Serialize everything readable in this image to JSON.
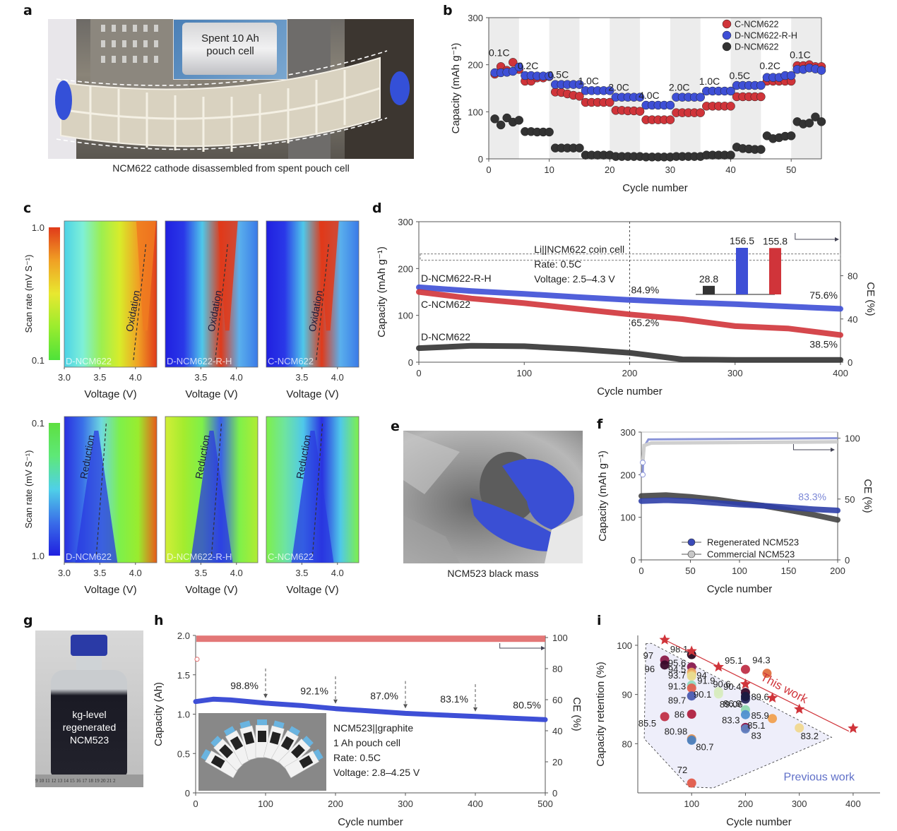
{
  "panels": {
    "a": {
      "label": "a",
      "inset_text_line1": "Spent 10 Ah",
      "inset_text_line2": "pouch cell",
      "caption": "NCM622 cathode disassembled from spent pouch cell"
    },
    "c": {
      "label": "c"
    },
    "e": {
      "label": "e",
      "caption": "NCM523 black mass"
    },
    "g": {
      "label": "g",
      "text_line1": "kg-level",
      "text_line2": "regenerated",
      "text_line3": "NCM523",
      "ruler_text": "9 10 11 12 13 14 15 16 17 18 19 20 21 2"
    }
  },
  "chart_data": [
    {
      "id": "b",
      "label": "b",
      "type": "scatter",
      "title": "",
      "xlabel": "Cycle number",
      "ylabel": "Capacity (mAh g⁻¹)",
      "xlim": [
        0,
        55
      ],
      "ylim": [
        0,
        300
      ],
      "xticks": [
        0,
        10,
        20,
        30,
        40,
        50
      ],
      "yticks": [
        0,
        100,
        200,
        300
      ],
      "legend_position": "top-right",
      "rate_bands": [
        {
          "label": "0.1C",
          "from": 0,
          "to": 5
        },
        {
          "label": "0.2C",
          "from": 5,
          "to": 10
        },
        {
          "label": "0.5C",
          "from": 10,
          "to": 15
        },
        {
          "label": "1.0C",
          "from": 15,
          "to": 20
        },
        {
          "label": "2.0C",
          "from": 20,
          "to": 25
        },
        {
          "label": "4.0C",
          "from": 25,
          "to": 30
        },
        {
          "label": "2.0C",
          "from": 30,
          "to": 35
        },
        {
          "label": "1.0C",
          "from": 35,
          "to": 40
        },
        {
          "label": "0.5C",
          "from": 40,
          "to": 45
        },
        {
          "label": "0.2C",
          "from": 45,
          "to": 50
        },
        {
          "label": "0.1C",
          "from": 50,
          "to": 55
        }
      ],
      "series": [
        {
          "name": "C-NCM622",
          "color": "#d0343a",
          "values": [
            180,
            196,
            188,
            205,
            190,
            165,
            165,
            172,
            172,
            175,
            142,
            141,
            138,
            135,
            133,
            120,
            120,
            120,
            120,
            120,
            103,
            103,
            102,
            102,
            101,
            83,
            83,
            83,
            83,
            83,
            98,
            98,
            98,
            98,
            98,
            112,
            112,
            112,
            112,
            112,
            132,
            132,
            132,
            132,
            132,
            165,
            165,
            165,
            165,
            165,
            198,
            198,
            200,
            196,
            196
          ]
        },
        {
          "name": "D-NCM622-R-H",
          "color": "#3e4fd6",
          "values": [
            183,
            183,
            184,
            186,
            195,
            177,
            177,
            176,
            176,
            176,
            158,
            158,
            158,
            158,
            158,
            145,
            145,
            145,
            145,
            145,
            131,
            131,
            131,
            131,
            131,
            114,
            114,
            114,
            114,
            114,
            131,
            131,
            131,
            131,
            131,
            144,
            144,
            144,
            144,
            144,
            156,
            156,
            156,
            156,
            156,
            173,
            173,
            173,
            177,
            177,
            190,
            190,
            193,
            191,
            188
          ]
        },
        {
          "name": "D-NCM622",
          "color": "#333333",
          "values": [
            85,
            72,
            87,
            78,
            82,
            58,
            58,
            57,
            57,
            57,
            23,
            23,
            23,
            23,
            23,
            8,
            8,
            8,
            8,
            8,
            5,
            5,
            5,
            5,
            5,
            4,
            4,
            4,
            4,
            4,
            5,
            5,
            5,
            5,
            5,
            8,
            8,
            8,
            8,
            8,
            25,
            22,
            21,
            20,
            20,
            49,
            43,
            45,
            48,
            49,
            79,
            74,
            76,
            89,
            79
          ]
        }
      ]
    },
    {
      "id": "c",
      "label": "c",
      "type": "heatmap",
      "xlabel": "Voltage (V)",
      "ylabel": "Scan rate (mV S⁻¹)",
      "subplots": [
        {
          "name": "D-NCM622",
          "row": "oxidation",
          "annotation": "Oxidation",
          "xticks": [
            "3.0",
            "3.5",
            "4.0"
          ],
          "yticks": [
            "1.0",
            "0.1"
          ]
        },
        {
          "name": "D-NCM622-R-H",
          "row": "oxidation",
          "annotation": "Oxidation",
          "xticks": [
            "3.5",
            "4.0"
          ]
        },
        {
          "name": "C-NCM622",
          "row": "oxidation",
          "annotation": "Oxidation",
          "xticks": [
            "3.5",
            "4.0"
          ]
        },
        {
          "name": "D-NCM622",
          "row": "reduction",
          "annotation": "Reduction",
          "xticks": [
            "3.0",
            "3.5",
            "4.0"
          ],
          "yticks": [
            "0.1",
            "1.0"
          ]
        },
        {
          "name": "D-NCM622-R-H",
          "row": "reduction",
          "annotation": "Reduction",
          "xticks": [
            "3.5",
            "4.0"
          ]
        },
        {
          "name": "C-NCM622",
          "row": "reduction",
          "annotation": "Reduction",
          "xticks": [
            "3.5",
            "4.0"
          ]
        }
      ],
      "xlim": [
        3.0,
        4.3
      ],
      "colorbar": [
        "#2020e0",
        "#3a7de8",
        "#4fd3e8",
        "#7ef04a",
        "#d6ef2a",
        "#f08a20",
        "#e02a1a"
      ]
    },
    {
      "id": "d",
      "label": "d",
      "type": "line",
      "xlabel": "Cycle number",
      "ylabel": "Capacity (mAh g⁻¹)",
      "y2label": "CE (%)",
      "xlim": [
        0,
        400
      ],
      "ylim": [
        0,
        300
      ],
      "y2lim": [
        0,
        130
      ],
      "xticks": [
        0,
        100,
        200,
        300,
        400
      ],
      "yticks": [
        0,
        100,
        200,
        300
      ],
      "y2ticks": [
        0,
        40,
        80
      ],
      "vline_at": 200,
      "info_lines": [
        "Li||NCM622 coin cell",
        "Rate: 0.5C",
        "Voltage: 2.5–4.3 V"
      ],
      "series": [
        {
          "name": "D-NCM622-R-H",
          "color": "#3e4fd6",
          "x": [
            0,
            50,
            100,
            150,
            200,
            250,
            300,
            350,
            400
          ],
          "values": [
            160,
            152,
            146,
            139,
            133,
            128,
            124,
            119,
            114
          ]
        },
        {
          "name": "C-NCM622",
          "color": "#d0343a",
          "x": [
            0,
            50,
            100,
            150,
            200,
            250,
            300,
            350,
            400
          ],
          "values": [
            150,
            136,
            126,
            114,
            102,
            92,
            77,
            72,
            58
          ]
        },
        {
          "name": "D-NCM622",
          "color": "#333333",
          "x": [
            0,
            50,
            100,
            150,
            200,
            250,
            300,
            350,
            400
          ],
          "values": [
            30,
            35,
            34,
            28,
            20,
            6,
            5,
            5,
            5
          ]
        }
      ],
      "ce_value": 97,
      "annotations": [
        {
          "text": "84.9%",
          "x": 200,
          "y": 135
        },
        {
          "text": "65.2%",
          "x": 200,
          "y": 80
        },
        {
          "text": "75.6%",
          "x": 390,
          "y": 130
        },
        {
          "text": "38.5%",
          "x": 390,
          "y": 40
        }
      ],
      "inset_bar": {
        "categories": [
          "D-NCM622",
          "D-NCM622-R-H",
          "C-NCM622"
        ],
        "values": [
          28.8,
          156.5,
          155.8
        ],
        "labels": [
          "28.8",
          "156.5",
          "155.8"
        ],
        "colors": [
          "#333333",
          "#3e4fd6",
          "#d0343a"
        ]
      }
    },
    {
      "id": "f",
      "label": "f",
      "type": "line",
      "xlabel": "Cycle number",
      "ylabel": "Capacity (mAh g⁻¹)",
      "y2label": "CE (%)",
      "xlim": [
        0,
        200
      ],
      "ylim": [
        0,
        300
      ],
      "y2lim": [
        0,
        105
      ],
      "xticks": [
        0,
        50,
        100,
        150,
        200
      ],
      "yticks": [
        0,
        100,
        200,
        300
      ],
      "y2ticks": [
        0,
        50,
        100
      ],
      "legend_position": "bottom-center",
      "series": [
        {
          "name": "Regenerated NCM523",
          "color": "#2f3fa8",
          "x": [
            0,
            25,
            50,
            75,
            100,
            125,
            150,
            175,
            200
          ],
          "values": [
            138,
            140,
            138,
            134,
            130,
            127,
            123,
            119,
            116
          ]
        },
        {
          "name": "Commercial NCM523",
          "color": "#444444",
          "x": [
            0,
            25,
            50,
            75,
            100,
            125,
            150,
            175,
            200
          ],
          "values": [
            150,
            152,
            148,
            142,
            134,
            127,
            117,
            106,
            94
          ]
        }
      ],
      "annotation": "83.3%"
    },
    {
      "id": "h",
      "label": "h",
      "type": "line",
      "xlabel": "Cycle number",
      "ylabel": "Capacity (Ah)",
      "y2label": "CE (%)",
      "xlim": [
        0,
        500
      ],
      "ylim": [
        0,
        2.0
      ],
      "y2lim": [
        0,
        100
      ],
      "xticks": [
        0,
        100,
        200,
        300,
        400,
        500
      ],
      "yticks": [
        "0",
        "0.5",
        "1.0",
        "1.5",
        "2.0"
      ],
      "y2ticks": [
        0,
        20,
        40,
        60,
        80,
        100
      ],
      "series": [
        {
          "name": "Capacity",
          "color": "#3e4fd6",
          "x": [
            0,
            25,
            50,
            100,
            150,
            200,
            250,
            300,
            350,
            400,
            450,
            500
          ],
          "values": [
            1.16,
            1.19,
            1.18,
            1.14,
            1.11,
            1.07,
            1.04,
            1.01,
            0.99,
            0.97,
            0.95,
            0.93
          ]
        },
        {
          "name": "CE",
          "color": "#d0343a",
          "ce_value": 99
        }
      ],
      "retention_annotations": [
        {
          "text": "98.8%",
          "x": 100
        },
        {
          "text": "92.1%",
          "x": 200
        },
        {
          "text": "87.0%",
          "x": 300
        },
        {
          "text": "83.1%",
          "x": 400
        },
        {
          "text": "80.5%",
          "x": 500
        }
      ],
      "info_lines": [
        "NCM523||graphite",
        "1 Ah pouch cell",
        "Rate: 0.5C",
        "Voltage: 2.8–4.25 V"
      ]
    },
    {
      "id": "i",
      "label": "i",
      "type": "scatter",
      "xlabel": "Cycle number",
      "ylabel": "Capacity retention (%)",
      "xlim": [
        0,
        450
      ],
      "ylim": [
        70,
        102
      ],
      "xticks": [
        100,
        200,
        300,
        400
      ],
      "yticks": [
        80,
        90,
        100
      ],
      "this_work_label": "This work",
      "previous_work_label": "Previous work",
      "this_work": {
        "color": "#d0343a",
        "x": [
          50,
          100,
          150,
          200,
          250,
          300,
          400
        ],
        "values": [
          101.1,
          98.8,
          95.6,
          92.1,
          89.3,
          87.0,
          83.1
        ]
      },
      "previous_work": [
        {
          "x": 50,
          "y": 97,
          "label": "97",
          "color": "#8a1a4a"
        },
        {
          "x": 50,
          "y": 96,
          "label": "96",
          "color": "#3a0a2a"
        },
        {
          "x": 100,
          "y": 98.1,
          "label": "98.1",
          "color": "#2a0a20"
        },
        {
          "x": 100,
          "y": 95.6,
          "label": "95.6",
          "color": "#8a1a50"
        },
        {
          "x": 100,
          "y": 94.5,
          "label": "94.5",
          "color": "#e8a060"
        },
        {
          "x": 100,
          "y": 94,
          "label": "94",
          "color": "#f0c070"
        },
        {
          "x": 100,
          "y": 93.7,
          "label": "93.7",
          "color": "#e8dc90"
        },
        {
          "x": 100,
          "y": 91.9,
          "label": "91.9",
          "color": "#90d8c0"
        },
        {
          "x": 100,
          "y": 91.3,
          "label": "91.3",
          "color": "#e06050"
        },
        {
          "x": 100,
          "y": 89.7,
          "label": "89.7",
          "color": "#4a5ab0"
        },
        {
          "x": 100,
          "y": 86,
          "label": "86",
          "color": "#b02040"
        },
        {
          "x": 100,
          "y": 80.98,
          "label": "80.98",
          "color": "#e09050"
        },
        {
          "x": 100,
          "y": 80.7,
          "label": "80.7",
          "color": "#4a80c0"
        },
        {
          "x": 100,
          "y": 72,
          "label": "72",
          "color": "#e05a4a"
        },
        {
          "x": 50,
          "y": 85.5,
          "label": "85.5",
          "color": "#c03048"
        },
        {
          "x": 150,
          "y": 90.6,
          "label": "90.6",
          "color": "#d8ecc0"
        },
        {
          "x": 150,
          "y": 90.1,
          "label": "90.1",
          "color": "#d8ecc0"
        },
        {
          "x": 200,
          "y": 95.1,
          "label": "95.1",
          "color": "#c03048"
        },
        {
          "x": 200,
          "y": 90.4,
          "label": "90.4",
          "color": "#3a0a2a"
        },
        {
          "x": 200,
          "y": 89.06,
          "label": "89.06",
          "color": "#2a2a60"
        },
        {
          "x": 200,
          "y": 89.6,
          "label": "89.6",
          "color": "#1a1a40"
        },
        {
          "x": 200,
          "y": 86.9,
          "label": "86.9",
          "color": "#90d8b0"
        },
        {
          "x": 200,
          "y": 85.9,
          "label": "85.9",
          "color": "#5090d0"
        },
        {
          "x": 200,
          "y": 83.3,
          "label": "83.3",
          "color": "#8a1040"
        },
        {
          "x": 200,
          "y": 83,
          "label": "83",
          "color": "#6080c0"
        },
        {
          "x": 240,
          "y": 94.3,
          "label": "94.3",
          "color": "#e07040"
        },
        {
          "x": 250,
          "y": 85.1,
          "label": "85.1",
          "color": "#f0a050"
        },
        {
          "x": 300,
          "y": 83.2,
          "label": "83.2",
          "color": "#f0d890"
        }
      ]
    }
  ]
}
